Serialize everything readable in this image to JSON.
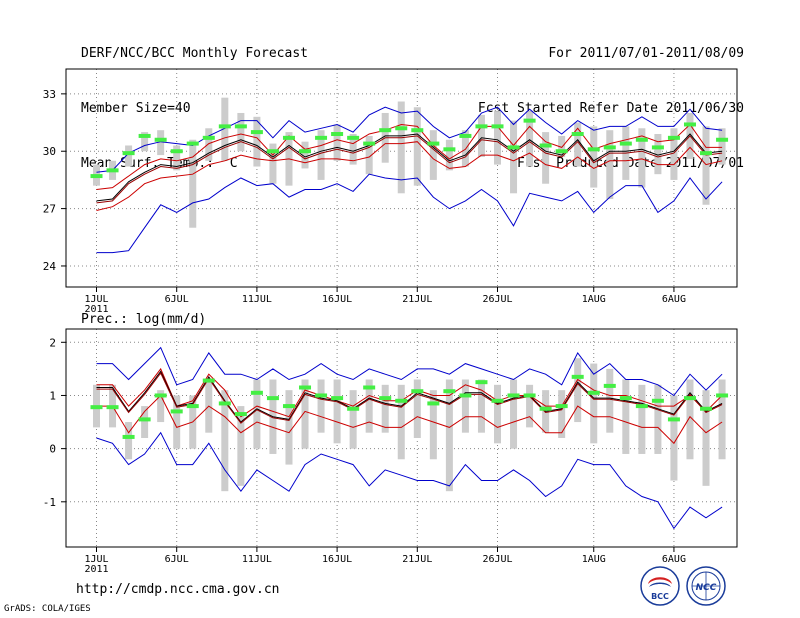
{
  "header": {
    "title": "DERF/NCC/BCC Monthly Forecast",
    "member_size": "Member Size=40",
    "variable": "Mean Surf. Temp.: °C",
    "period": "For 2011/07/01-2011/08/09",
    "started": "Fcst Started Refer Date 2011/06/30",
    "produced": "Fcst Produced Date 2011/07/01"
  },
  "footer": {
    "url": "http://cmdp.ncc.cma.gov.cn",
    "credit": "GrADS: COLA/IGES",
    "logo_bcc": "BCC",
    "logo_ncc": "NCC"
  },
  "colors": {
    "ensemble_mean": "#000000",
    "spread": "#cc0000",
    "extremes": "#0000cc",
    "observed_bar": "#44ee44",
    "range_box": "#cccccc"
  },
  "chart_data": [
    {
      "type": "line",
      "title": "Mean Surf. Temp.: °C",
      "ylim": [
        22.9,
        34.3
      ],
      "yticks": [
        24,
        27,
        30,
        33
      ],
      "x_ticks": [
        {
          "day": 1,
          "label": "1JUL",
          "sub": "2011"
        },
        {
          "day": 6,
          "label": "6JUL"
        },
        {
          "day": 11,
          "label": "11JUL"
        },
        {
          "day": 16,
          "label": "16JUL"
        },
        {
          "day": 21,
          "label": "21JUL"
        },
        {
          "day": 26,
          "label": "26JUL"
        },
        {
          "day": 32,
          "label": "1AUG"
        },
        {
          "day": 37,
          "label": "6AUG"
        }
      ],
      "days": [
        1,
        2,
        3,
        4,
        5,
        6,
        7,
        8,
        9,
        10,
        11,
        12,
        13,
        14,
        15,
        16,
        17,
        18,
        19,
        20,
        21,
        22,
        23,
        24,
        25,
        26,
        27,
        28,
        29,
        30,
        31,
        32,
        33,
        34,
        35,
        36,
        37,
        38,
        39,
        40
      ],
      "series": [
        {
          "name": "max",
          "color": "#0000cc",
          "values": [
            28.9,
            29.0,
            29.9,
            30.3,
            30.5,
            30.4,
            30.3,
            30.8,
            31.2,
            31.6,
            31.6,
            30.7,
            31.6,
            31.0,
            31.2,
            31.4,
            31.0,
            31.9,
            32.3,
            32.0,
            32.1,
            31.3,
            30.7,
            31.0,
            32.0,
            32.3,
            31.4,
            32.2,
            31.5,
            30.9,
            31.6,
            31.1,
            31.3,
            31.3,
            31.8,
            31.3,
            31.3,
            32.2,
            31.2,
            31.1
          ]
        },
        {
          "name": "upper",
          "color": "#cc0000",
          "values": [
            28.0,
            28.1,
            28.7,
            29.3,
            29.6,
            29.5,
            29.7,
            30.4,
            30.7,
            30.9,
            30.7,
            29.8,
            30.8,
            30.1,
            30.3,
            30.6,
            30.4,
            30.9,
            31.1,
            31.4,
            31.3,
            30.3,
            29.6,
            30.1,
            31.3,
            31.3,
            30.3,
            31.3,
            30.5,
            30.2,
            31.2,
            30.1,
            30.4,
            30.6,
            30.8,
            30.5,
            30.6,
            31.4,
            30.2,
            30.2
          ]
        },
        {
          "name": "mean_a",
          "color": "#000000",
          "values": [
            27.4,
            27.5,
            28.4,
            28.9,
            29.3,
            29.2,
            29.4,
            29.9,
            30.3,
            30.6,
            30.3,
            29.7,
            30.3,
            29.7,
            30.0,
            30.2,
            30.0,
            30.3,
            30.8,
            30.8,
            30.9,
            30.2,
            29.5,
            29.8,
            30.7,
            30.6,
            30.0,
            30.6,
            30.0,
            29.8,
            30.6,
            29.5,
            30.0,
            30.0,
            30.1,
            29.8,
            30.0,
            30.9,
            29.9,
            30.0
          ]
        },
        {
          "name": "mean_b",
          "color": "#990000",
          "values": [
            27.3,
            27.4,
            28.3,
            28.8,
            29.2,
            29.1,
            29.3,
            29.8,
            30.2,
            30.5,
            30.2,
            29.6,
            30.2,
            29.6,
            29.9,
            30.1,
            29.9,
            30.2,
            30.7,
            30.7,
            30.8,
            30.1,
            29.4,
            29.7,
            30.6,
            30.5,
            29.9,
            30.5,
            29.9,
            29.7,
            30.5,
            29.4,
            29.9,
            29.9,
            30.0,
            29.7,
            29.9,
            30.8,
            29.8,
            29.9
          ]
        },
        {
          "name": "lower",
          "color": "#cc0000",
          "values": [
            26.9,
            27.1,
            27.6,
            28.3,
            28.6,
            28.7,
            28.8,
            29.3,
            29.5,
            29.8,
            29.6,
            29.5,
            29.6,
            29.4,
            29.6,
            29.6,
            29.5,
            29.7,
            30.4,
            30.4,
            30.5,
            29.6,
            29.1,
            29.2,
            29.8,
            29.8,
            29.5,
            29.9,
            29.3,
            29.1,
            29.7,
            29.1,
            29.5,
            29.5,
            29.6,
            29.3,
            29.3,
            30.2,
            29.3,
            29.5
          ]
        },
        {
          "name": "min",
          "color": "#0000cc",
          "values": [
            24.7,
            24.7,
            24.8,
            26.0,
            27.2,
            26.8,
            27.3,
            27.5,
            28.1,
            28.6,
            28.2,
            28.3,
            27.6,
            28.0,
            28.0,
            28.3,
            27.9,
            28.8,
            28.6,
            28.5,
            28.6,
            27.6,
            27.0,
            27.4,
            28.0,
            27.4,
            26.1,
            27.8,
            27.6,
            27.4,
            27.9,
            26.8,
            27.6,
            28.2,
            28.2,
            26.8,
            27.4,
            28.6,
            27.5,
            28.4
          ]
        }
      ],
      "obs": [
        28.7,
        29.0,
        29.9,
        30.8,
        30.6,
        30.0,
        30.4,
        30.7,
        31.3,
        31.3,
        31.0,
        30.0,
        30.7,
        30.0,
        30.7,
        30.9,
        30.7,
        30.4,
        31.1,
        31.2,
        31.1,
        30.4,
        30.1,
        30.8,
        31.3,
        31.3,
        30.2,
        31.6,
        30.3,
        30.0,
        30.9,
        30.1,
        30.2,
        30.4,
        30.6,
        30.2,
        30.7,
        31.4,
        29.9,
        30.6
      ],
      "box_low": [
        28.2,
        28.5,
        29.2,
        30.0,
        29.8,
        29.0,
        26.0,
        29.5,
        29.5,
        30.0,
        29.2,
        28.3,
        28.2,
        29.1,
        28.5,
        29.5,
        29.3,
        28.8,
        29.4,
        27.8,
        28.2,
        28.5,
        29.0,
        29.2,
        29.7,
        29.3,
        27.8,
        29.2,
        28.3,
        29.7,
        29.2,
        28.1,
        27.5,
        28.5,
        28.1,
        28.8,
        28.5,
        29.6,
        27.2,
        29.3
      ],
      "box_high": [
        29.3,
        29.5,
        30.3,
        31.0,
        31.1,
        30.3,
        30.6,
        31.2,
        32.8,
        32.0,
        31.8,
        30.4,
        31.0,
        30.5,
        31.1,
        31.4,
        30.9,
        30.8,
        32.0,
        32.6,
        32.3,
        31.1,
        30.6,
        31.1,
        31.9,
        32.1,
        31.6,
        32.1,
        31.0,
        30.8,
        31.5,
        31.3,
        31.1,
        31.3,
        31.2,
        30.9,
        31.2,
        32.0,
        31.3,
        31.2
      ]
    },
    {
      "type": "line",
      "title": "Prec.: log(mm/d)",
      "ylim": [
        -1.85,
        2.25
      ],
      "yticks": [
        -1,
        0,
        1,
        2
      ],
      "x_ticks": [
        {
          "day": 1,
          "label": "1JUL",
          "sub": "2011"
        },
        {
          "day": 6,
          "label": "6JUL"
        },
        {
          "day": 11,
          "label": "11JUL"
        },
        {
          "day": 16,
          "label": "16JUL"
        },
        {
          "day": 21,
          "label": "21JUL"
        },
        {
          "day": 26,
          "label": "26JUL"
        },
        {
          "day": 32,
          "label": "1AUG"
        },
        {
          "day": 37,
          "label": "6AUG"
        }
      ],
      "days": [
        1,
        2,
        3,
        4,
        5,
        6,
        7,
        8,
        9,
        10,
        11,
        12,
        13,
        14,
        15,
        16,
        17,
        18,
        19,
        20,
        21,
        22,
        23,
        24,
        25,
        26,
        27,
        28,
        29,
        30,
        31,
        32,
        33,
        34,
        35,
        36,
        37,
        38,
        39,
        40
      ],
      "series": [
        {
          "name": "max",
          "color": "#0000cc",
          "values": [
            1.6,
            1.6,
            1.3,
            1.6,
            1.9,
            1.2,
            1.3,
            1.8,
            1.4,
            1.4,
            1.3,
            1.5,
            1.3,
            1.4,
            1.6,
            1.4,
            1.3,
            1.5,
            1.4,
            1.3,
            1.5,
            1.5,
            1.4,
            1.6,
            1.5,
            1.4,
            1.3,
            1.5,
            1.4,
            1.2,
            1.8,
            1.4,
            1.6,
            1.3,
            1.3,
            1.2,
            1.0,
            1.4,
            1.1,
            1.4
          ]
        },
        {
          "name": "upper",
          "color": "#cc0000",
          "values": [
            1.2,
            1.2,
            0.8,
            1.1,
            1.5,
            0.8,
            0.9,
            1.4,
            1.1,
            0.6,
            0.8,
            0.7,
            0.6,
            1.1,
            1.0,
            0.9,
            0.8,
            1.0,
            0.9,
            0.9,
            1.1,
            1.0,
            1.0,
            1.2,
            1.1,
            0.9,
            1.0,
            1.0,
            0.8,
            0.8,
            1.3,
            1.1,
            1.0,
            1.0,
            0.9,
            0.8,
            0.8,
            1.0,
            0.7,
            1.0
          ]
        },
        {
          "name": "mean_a",
          "color": "#000000",
          "values": [
            1.15,
            1.15,
            0.7,
            1.05,
            1.45,
            0.8,
            0.85,
            1.35,
            0.9,
            0.5,
            0.75,
            0.6,
            0.55,
            1.05,
            0.95,
            0.9,
            0.75,
            0.95,
            0.85,
            0.8,
            1.05,
            0.95,
            0.85,
            1.05,
            1.05,
            0.85,
            0.95,
            1.0,
            0.7,
            0.75,
            1.25,
            0.95,
            0.95,
            0.9,
            0.85,
            0.75,
            0.65,
            1.05,
            0.7,
            0.85
          ]
        },
        {
          "name": "mean_b",
          "color": "#990000",
          "values": [
            1.12,
            1.12,
            0.68,
            1.02,
            1.42,
            0.78,
            0.83,
            1.32,
            0.88,
            0.48,
            0.73,
            0.58,
            0.53,
            1.02,
            0.93,
            0.88,
            0.73,
            0.93,
            0.83,
            0.78,
            1.02,
            0.93,
            0.83,
            1.02,
            1.02,
            0.83,
            0.93,
            0.98,
            0.68,
            0.73,
            1.22,
            0.93,
            0.93,
            0.88,
            0.83,
            0.73,
            0.63,
            1.02,
            0.68,
            0.83
          ]
        },
        {
          "name": "lower",
          "color": "#cc0000",
          "values": [
            0.8,
            0.8,
            0.3,
            0.7,
            1.0,
            0.4,
            0.5,
            0.8,
            0.6,
            0.3,
            0.5,
            0.4,
            0.3,
            0.7,
            0.6,
            0.5,
            0.4,
            0.5,
            0.4,
            0.4,
            0.6,
            0.5,
            0.4,
            0.6,
            0.6,
            0.4,
            0.5,
            0.6,
            0.3,
            0.3,
            0.8,
            0.6,
            0.6,
            0.5,
            0.4,
            0.4,
            0.1,
            0.6,
            0.3,
            0.5
          ]
        },
        {
          "name": "min",
          "color": "#0000cc",
          "values": [
            0.2,
            0.1,
            -0.3,
            -0.1,
            0.3,
            -0.3,
            -0.3,
            0.1,
            -0.4,
            -0.8,
            -0.4,
            -0.6,
            -0.8,
            -0.3,
            -0.1,
            -0.2,
            -0.3,
            -0.7,
            -0.4,
            -0.5,
            -0.6,
            -0.6,
            -0.7,
            -0.3,
            -0.6,
            -0.6,
            -0.4,
            -0.6,
            -0.9,
            -0.7,
            -0.2,
            -0.3,
            -0.3,
            -0.7,
            -0.9,
            -1.0,
            -1.5,
            -1.1,
            -1.3,
            -1.1
          ]
        }
      ],
      "obs": [
        0.78,
        0.78,
        0.22,
        0.55,
        1.0,
        0.7,
        0.8,
        1.28,
        0.85,
        0.65,
        1.05,
        0.95,
        0.8,
        1.15,
        1.0,
        0.95,
        0.75,
        1.15,
        0.95,
        0.9,
        1.08,
        0.85,
        1.08,
        1.0,
        1.25,
        0.9,
        1.0,
        1.0,
        0.75,
        0.8,
        1.35,
        1.05,
        1.18,
        0.95,
        0.8,
        0.9,
        0.55,
        0.95,
        0.75,
        1.0
      ],
      "box_low": [
        0.4,
        0.4,
        -0.2,
        0.2,
        0.5,
        0.0,
        0.0,
        0.3,
        -0.8,
        -0.7,
        0.0,
        -0.1,
        -0.3,
        0.0,
        0.3,
        0.1,
        0.0,
        0.3,
        0.3,
        -0.2,
        0.2,
        -0.2,
        -0.8,
        0.3,
        0.3,
        0.1,
        0.0,
        0.4,
        0.3,
        0.2,
        0.5,
        0.1,
        0.3,
        -0.1,
        -0.1,
        -0.1,
        -0.6,
        -0.2,
        -0.7,
        -0.2
      ],
      "box_high": [
        1.2,
        1.2,
        0.5,
        0.8,
        1.1,
        1.0,
        1.0,
        1.3,
        1.1,
        0.8,
        1.3,
        1.3,
        1.1,
        1.3,
        1.3,
        1.3,
        1.1,
        1.3,
        1.2,
        1.2,
        1.3,
        1.1,
        1.3,
        1.3,
        1.3,
        1.2,
        1.3,
        1.2,
        1.1,
        1.1,
        1.7,
        1.6,
        1.5,
        1.3,
        1.2,
        1.2,
        1.0,
        1.3,
        1.1,
        1.3
      ]
    }
  ]
}
